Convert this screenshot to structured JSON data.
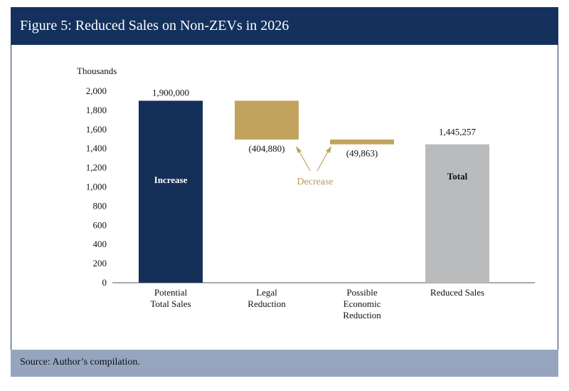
{
  "figure": {
    "title": "Figure 5: Reduced Sales on Non-ZEVs in 2026",
    "source": "Source: Author’s compilation."
  },
  "colors": {
    "title_bar": "#13315c",
    "increase": "#142f58",
    "decrease": "#c1a35e",
    "total": "#babbbd",
    "source_bar": "#95a5bf",
    "decrease_label": "#b8985a"
  },
  "chart_data": {
    "type": "bar",
    "subtype": "waterfall",
    "ylabel": "Thousands",
    "ylim": [
      0,
      2000
    ],
    "yticks": [
      "2,000",
      "1,800",
      "1,600",
      "1,400",
      "1,200",
      "1,000",
      "800",
      "600",
      "400",
      "200",
      "0"
    ],
    "ytick_values": [
      2000,
      1800,
      1600,
      1400,
      1200,
      1000,
      800,
      600,
      400,
      200,
      0
    ],
    "categories": [
      [
        "Potential",
        "Total Sales"
      ],
      [
        "Legal",
        "Reduction"
      ],
      [
        "Possible",
        "Economic",
        "Reduction"
      ],
      [
        "Reduced Sales"
      ]
    ],
    "bars": [
      {
        "kind": "increase",
        "start": 0,
        "end": 1900,
        "value_label": "1,900,000",
        "inside_label": "Increase"
      },
      {
        "kind": "decrease",
        "start": 1900,
        "end": 1495,
        "value_label": "(404,880)",
        "inside_label": ""
      },
      {
        "kind": "decrease",
        "start": 1495,
        "end": 1445,
        "value_label": "(49,863)",
        "inside_label": ""
      },
      {
        "kind": "total",
        "start": 0,
        "end": 1445,
        "value_label": "1,445,257",
        "inside_label": "Total"
      }
    ],
    "annotation": "Decrease",
    "grid": false,
    "legend": "none"
  }
}
